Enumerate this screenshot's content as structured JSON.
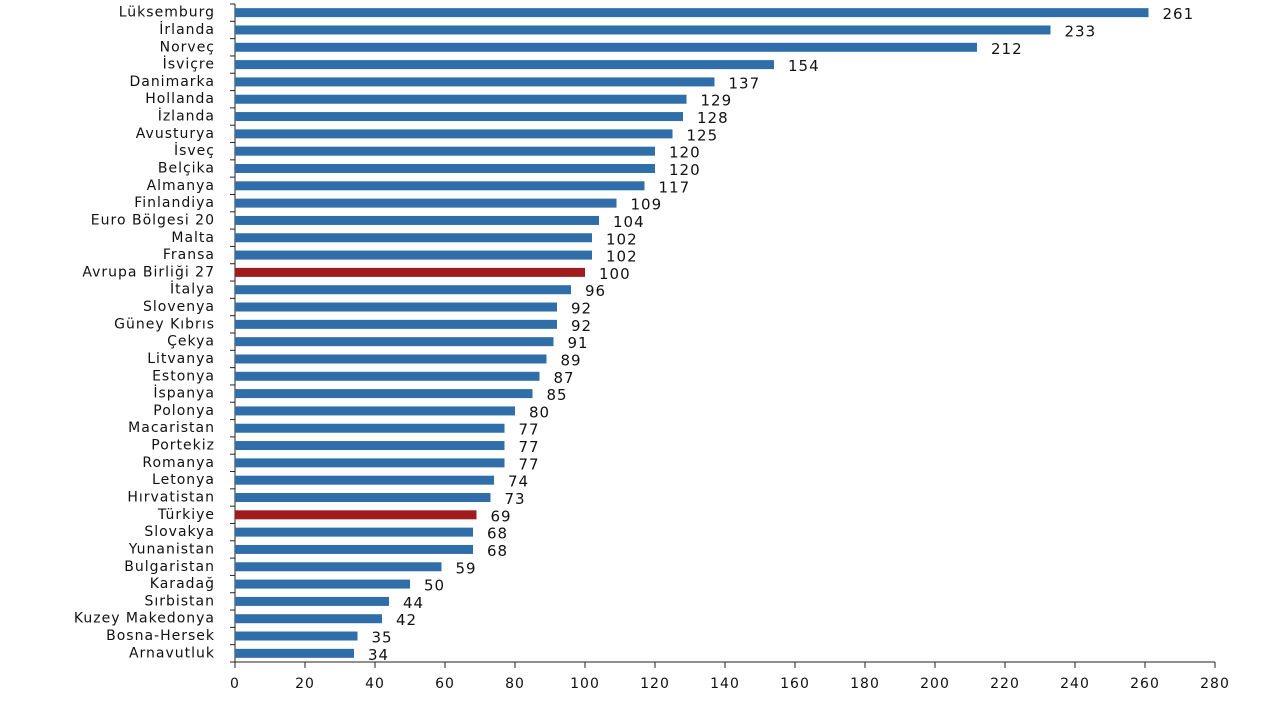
{
  "chart_data": {
    "type": "bar",
    "orientation": "horizontal",
    "categories": [
      "Lüksemburg",
      "İrlanda",
      "Norveç",
      "İsviçre",
      "Danimarka",
      "Hollanda",
      "İzlanda",
      "Avusturya",
      "İsveç",
      "Belçika",
      "Almanya",
      "Finlandiya",
      "Euro Bölgesi 20",
      "Malta",
      "Fransa",
      "Avrupa Birliği 27",
      "İtalya",
      "Slovenya",
      "Güney Kıbrıs",
      "Çekya",
      "Litvanya",
      "Estonya",
      "İspanya",
      "Polonya",
      "Macaristan",
      "Portekiz",
      "Romanya",
      "Letonya",
      "Hırvatistan",
      "Türkiye",
      "Slovakya",
      "Yunanistan",
      "Bulgaristan",
      "Karadağ",
      "Sırbistan",
      "Kuzey Makedonya",
      "Bosna-Hersek",
      "Arnavutluk"
    ],
    "values": [
      261,
      233,
      212,
      154,
      137,
      129,
      128,
      125,
      120,
      120,
      117,
      109,
      104,
      102,
      102,
      100,
      96,
      92,
      92,
      91,
      89,
      87,
      85,
      80,
      77,
      77,
      77,
      74,
      73,
      69,
      68,
      68,
      59,
      50,
      44,
      42,
      35,
      34
    ],
    "colors": [
      "#2f6ea8",
      "#2f6ea8",
      "#2f6ea8",
      "#2f6ea8",
      "#2f6ea8",
      "#2f6ea8",
      "#2f6ea8",
      "#2f6ea8",
      "#2f6ea8",
      "#2f6ea8",
      "#2f6ea8",
      "#2f6ea8",
      "#2f6ea8",
      "#2f6ea8",
      "#2f6ea8",
      "#a01c1c",
      "#2f6ea8",
      "#2f6ea8",
      "#2f6ea8",
      "#2f6ea8",
      "#2f6ea8",
      "#2f6ea8",
      "#2f6ea8",
      "#2f6ea8",
      "#2f6ea8",
      "#2f6ea8",
      "#2f6ea8",
      "#2f6ea8",
      "#2f6ea8",
      "#a01c1c",
      "#2f6ea8",
      "#2f6ea8",
      "#2f6ea8",
      "#2f6ea8",
      "#2f6ea8",
      "#2f6ea8",
      "#2f6ea8",
      "#2f6ea8"
    ],
    "xlim": [
      0,
      280
    ],
    "xticks": [
      0,
      20,
      40,
      60,
      80,
      100,
      120,
      140,
      160,
      180,
      200,
      220,
      240,
      260,
      280
    ],
    "grid": false
  }
}
